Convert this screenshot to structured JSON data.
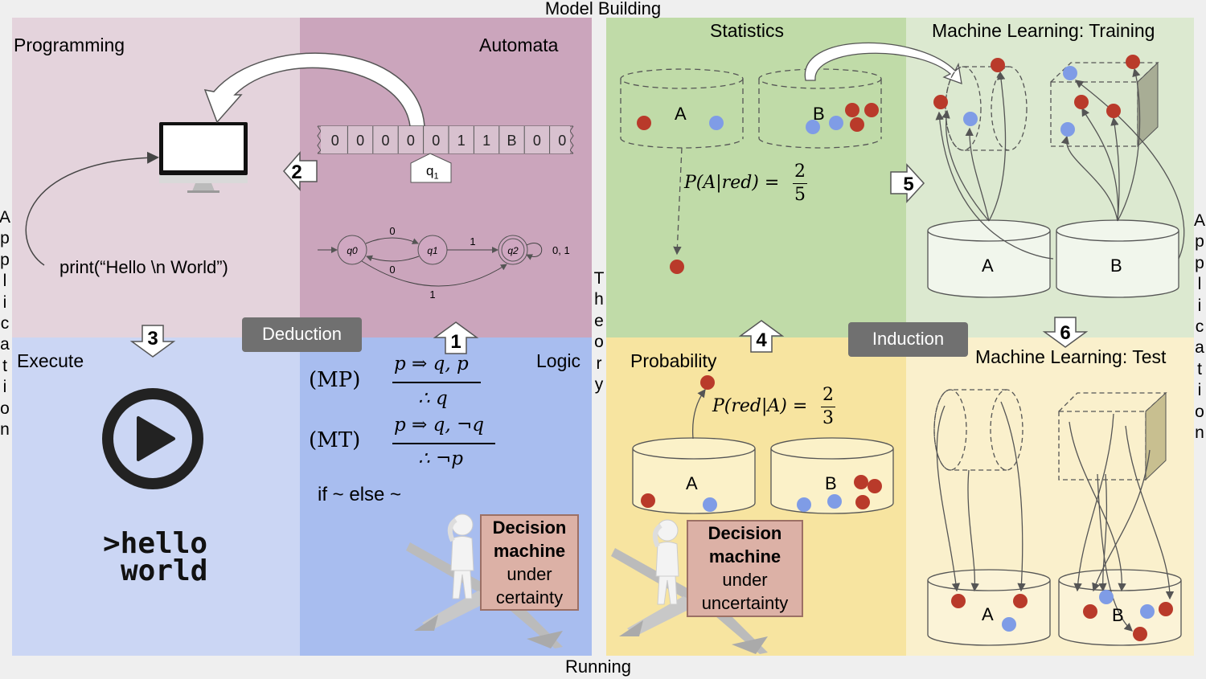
{
  "edges": {
    "top": "Model Building",
    "bottom": "Running",
    "left": "Application",
    "right": "Application",
    "center": "Theory"
  },
  "panels": {
    "programming": {
      "title": "Programming",
      "code": "print(“Hello \\n World”)"
    },
    "automata": {
      "title": "Automata",
      "tape": [
        "0",
        "0",
        "0",
        "0",
        "0",
        "1",
        "1",
        "B",
        "0",
        "0"
      ],
      "head": "q",
      "head_sub": "1",
      "states": [
        "q0",
        "q1",
        "q2"
      ],
      "transitions": [
        "0",
        "0",
        "1",
        "1",
        "0, 1"
      ]
    },
    "execute": {
      "title": "Execute",
      "terminal_line1": ">hello",
      "terminal_line2": "world"
    },
    "logic": {
      "title": "Logic",
      "mp_label": "(MP)",
      "mp_premise": "p ⇒ q, p",
      "mp_conclusion": "∴ q",
      "mt_label": "(MT)",
      "mt_premise": "p ⇒ q, ¬q",
      "mt_conclusion": "∴ ¬p",
      "if_else": "if ~ else ~",
      "decision_bold1": "Decision",
      "decision_bold2": "machine",
      "decision_line3": "under",
      "decision_line4": "certainty"
    },
    "statistics": {
      "title": "Statistics",
      "label_a": "A",
      "label_b": "B",
      "formula_lhs": "P(A|red) =",
      "formula_num": "2",
      "formula_den": "5"
    },
    "ml_training": {
      "title": "Machine Learning: Training",
      "label_a": "A",
      "label_b": "B"
    },
    "probability": {
      "title": "Probability",
      "label_a": "A",
      "label_b": "B",
      "formula_lhs": "P(red|A) =",
      "formula_num": "2",
      "formula_den": "3",
      "decision_bold1": "Decision",
      "decision_bold2": "machine",
      "decision_line3": "under",
      "decision_line4": "uncertainty"
    },
    "ml_test": {
      "title": "Machine Learning: Test",
      "label_a": "A",
      "label_b": "B"
    }
  },
  "badges": {
    "deduction": "Deduction",
    "induction": "Induction"
  },
  "steps": [
    "1",
    "2",
    "3",
    "4",
    "5",
    "6"
  ],
  "colors": {
    "programming": "#e4d3dc",
    "automata": "#cba5bc",
    "execute": "#cbd6f4",
    "logic": "#a8bdef",
    "statistics": "#c0dba8",
    "ml_training": "#dce9d0",
    "probability": "#f7e4a0",
    "ml_test": "#faf0cc",
    "red_ball": "#b93a2a",
    "blue_ball": "#7f9ce6"
  },
  "icons": [
    "monitor-icon",
    "play-icon",
    "thinking-person-icon"
  ]
}
